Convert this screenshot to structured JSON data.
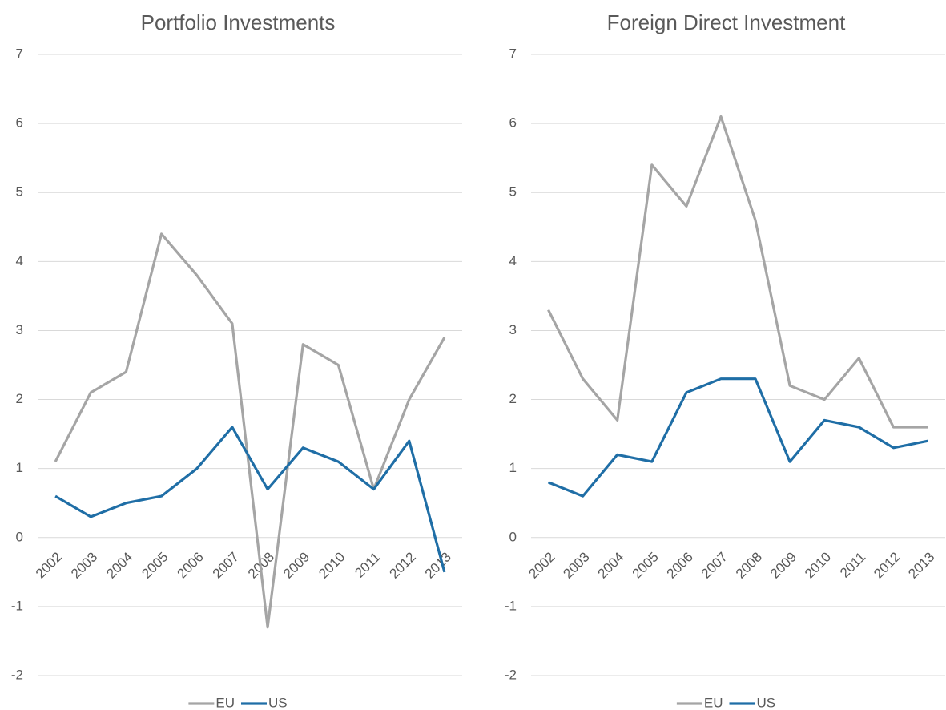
{
  "chart_data": [
    {
      "type": "line",
      "title": "Portfolio Investments",
      "categories": [
        "2002",
        "2003",
        "2004",
        "2005",
        "2006",
        "2007",
        "2008",
        "2009",
        "2010",
        "2011",
        "2012",
        "2013"
      ],
      "series": [
        {
          "name": "EU",
          "color": "#a5a5a5",
          "values": [
            1.1,
            2.1,
            2.4,
            4.4,
            3.8,
            3.1,
            -1.3,
            2.8,
            2.5,
            0.7,
            2.0,
            2.9
          ]
        },
        {
          "name": "US",
          "color": "#1f6ea6",
          "values": [
            0.6,
            0.3,
            0.5,
            0.6,
            1.0,
            1.6,
            0.7,
            1.3,
            1.1,
            0.7,
            1.4,
            -0.5
          ]
        }
      ],
      "ylim": [
        -2,
        7
      ],
      "yticks": [
        -2,
        -1,
        0,
        1,
        2,
        3,
        4,
        5,
        6,
        7
      ],
      "grid": true,
      "legend": "bottom"
    },
    {
      "type": "line",
      "title": "Foreign Direct Investment",
      "categories": [
        "2002",
        "2003",
        "2004",
        "2005",
        "2006",
        "2007",
        "2008",
        "2009",
        "2010",
        "2011",
        "2012",
        "2013"
      ],
      "series": [
        {
          "name": "EU",
          "color": "#a5a5a5",
          "values": [
            3.3,
            2.3,
            1.7,
            5.4,
            4.8,
            6.1,
            4.6,
            2.2,
            2.0,
            2.6,
            1.6,
            1.6
          ]
        },
        {
          "name": "US",
          "color": "#1f6ea6",
          "values": [
            0.8,
            0.6,
            1.2,
            1.1,
            2.1,
            2.3,
            2.3,
            1.1,
            1.7,
            1.6,
            1.3,
            1.4
          ]
        }
      ],
      "ylim": [
        -2,
        7
      ],
      "yticks": [
        -2,
        -1,
        0,
        1,
        2,
        3,
        4,
        5,
        6,
        7
      ],
      "grid": true,
      "legend": "bottom"
    }
  ]
}
